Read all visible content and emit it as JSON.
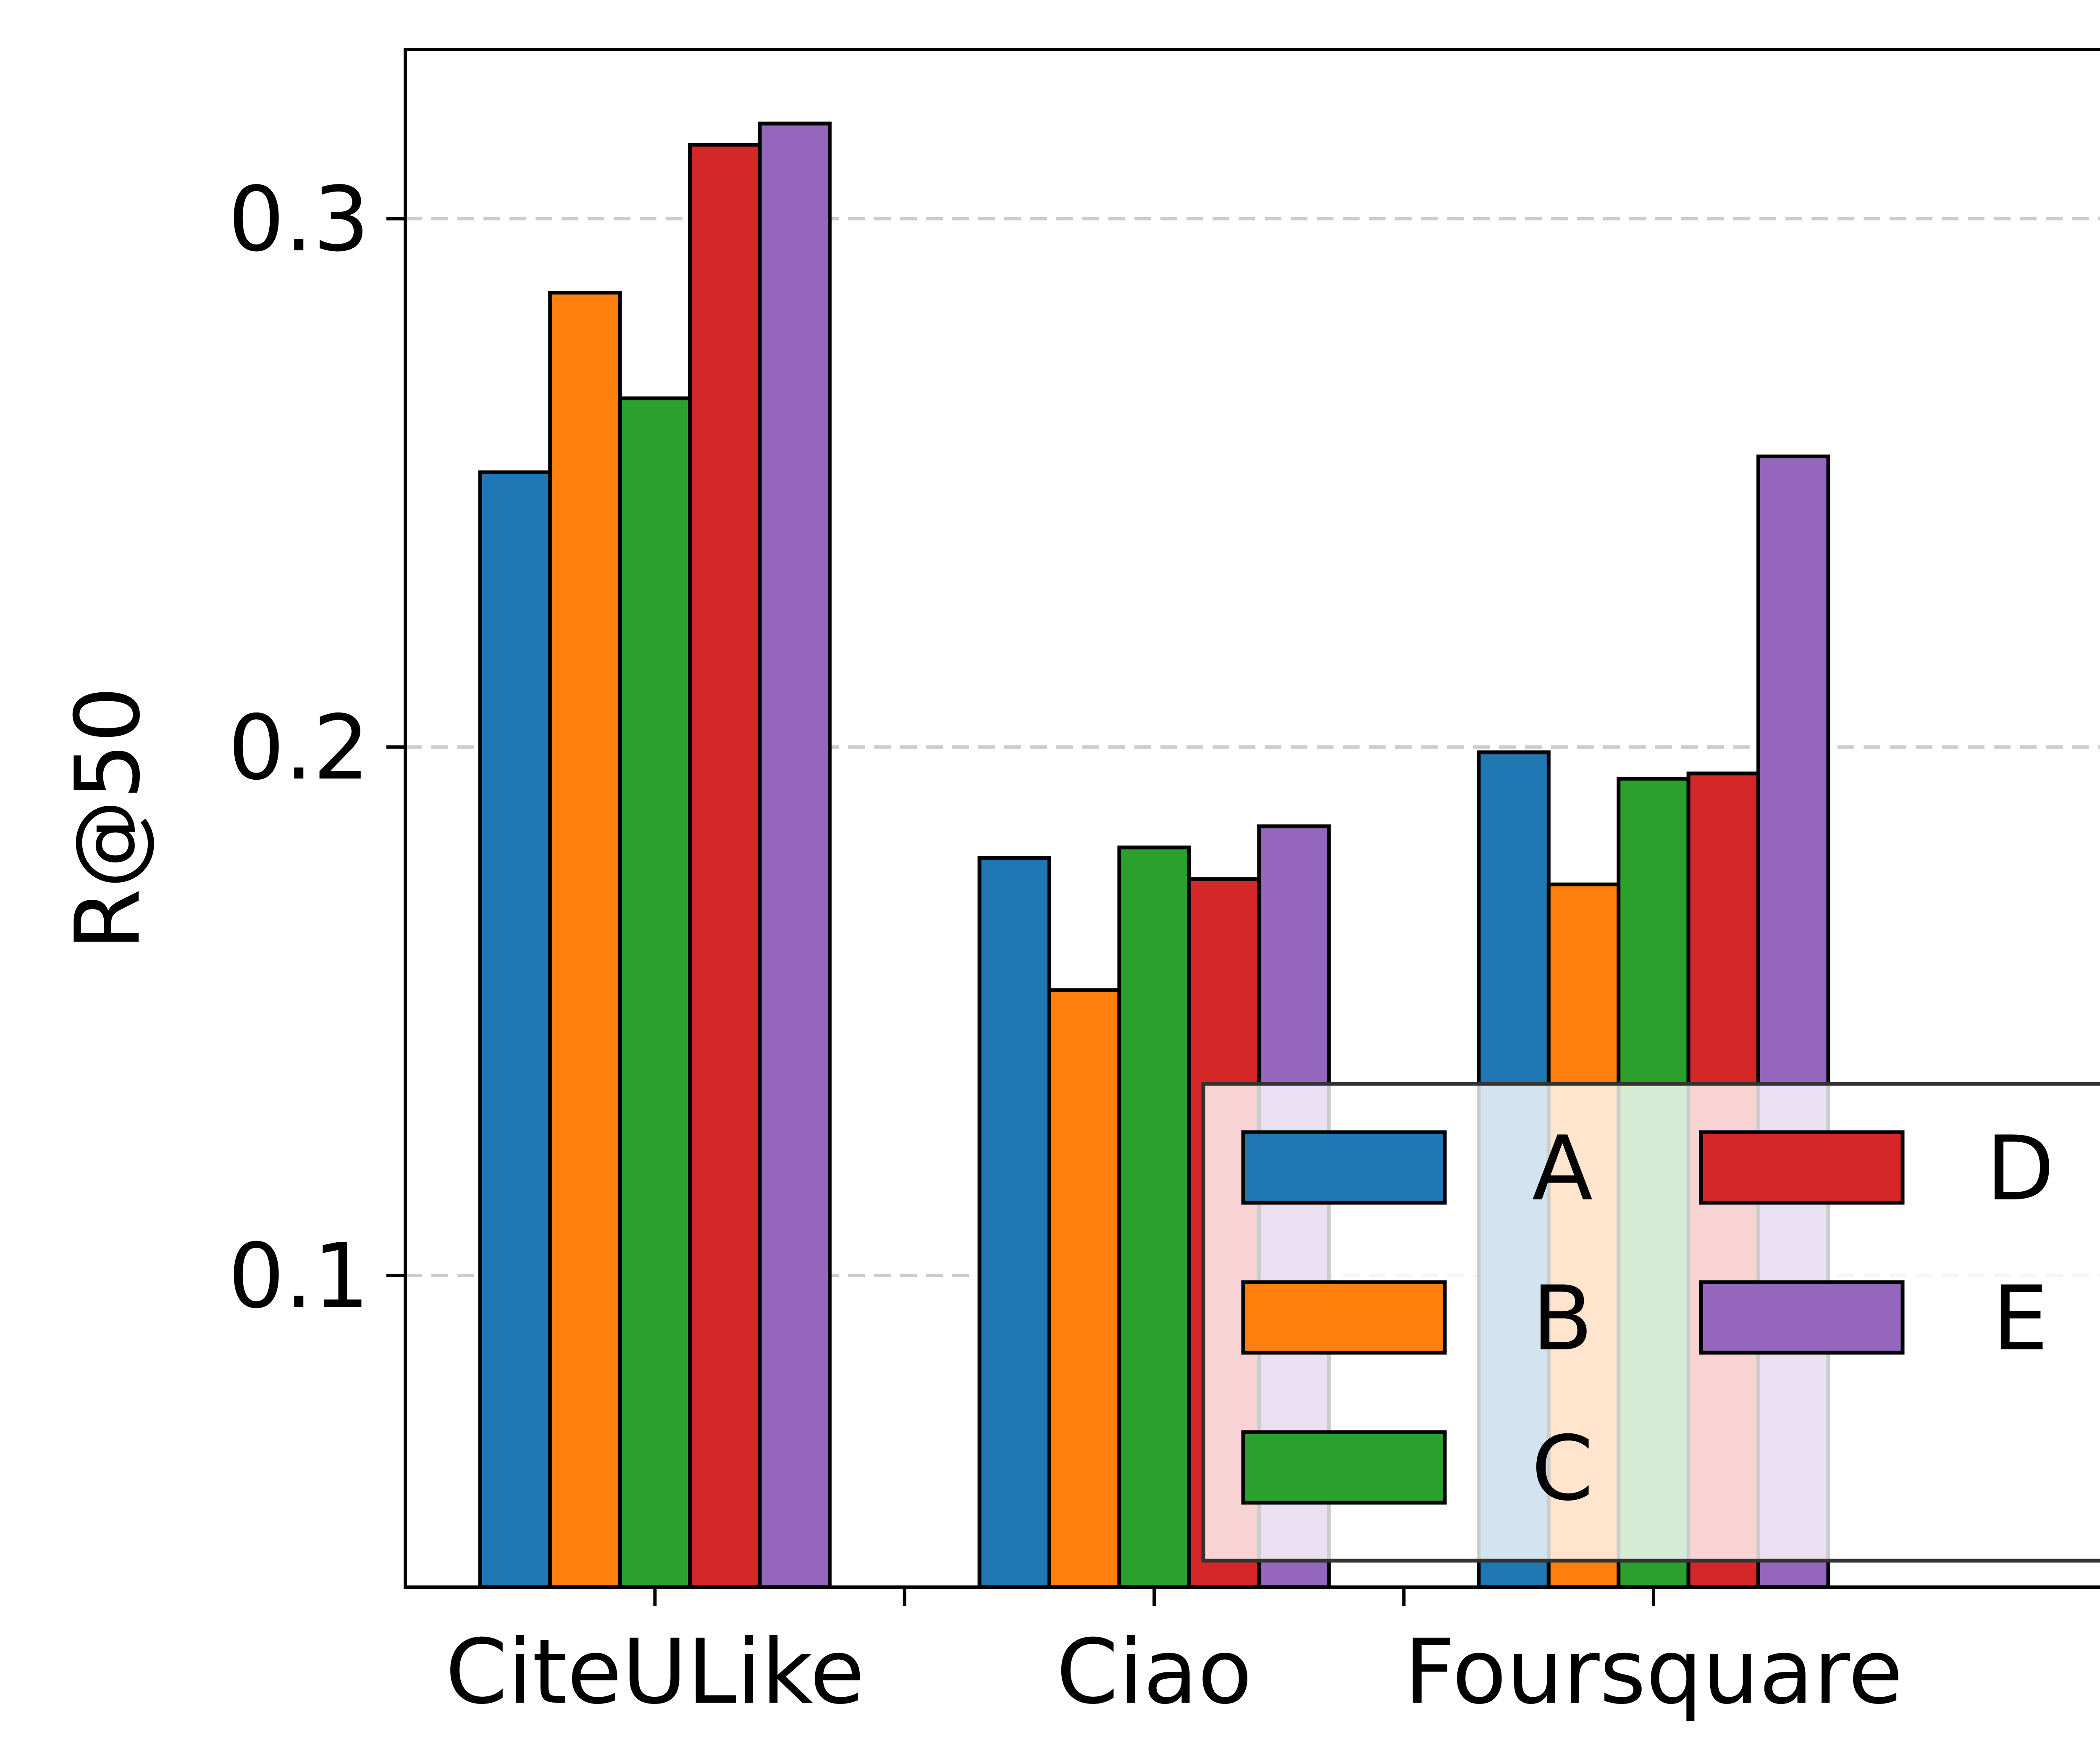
{
  "chart_data": {
    "type": "bar",
    "title": "",
    "xlabel": "",
    "ylabel": "R@50",
    "categories": [
      "CiteULike",
      "Ciao",
      "Foursquare"
    ],
    "series": [
      {
        "name": "A",
        "color": "#1f77b4",
        "values": [
          0.252,
          0.179,
          0.199
        ]
      },
      {
        "name": "B",
        "color": "#ff7f0e",
        "values": [
          0.286,
          0.154,
          0.174
        ]
      },
      {
        "name": "C",
        "color": "#2ca02c",
        "values": [
          0.266,
          0.181,
          0.194
        ]
      },
      {
        "name": "D",
        "color": "#d62728",
        "values": [
          0.314,
          0.175,
          0.195
        ]
      },
      {
        "name": "E",
        "color": "#9467bd",
        "values": [
          0.318,
          0.185,
          0.255
        ]
      }
    ],
    "yticks": [
      "0.1",
      "0.2",
      "0.3"
    ],
    "ylim": [
      0.041,
      0.332
    ],
    "grid": "y-dashed",
    "legend": {
      "position": "lower-right",
      "columns": 2
    }
  }
}
